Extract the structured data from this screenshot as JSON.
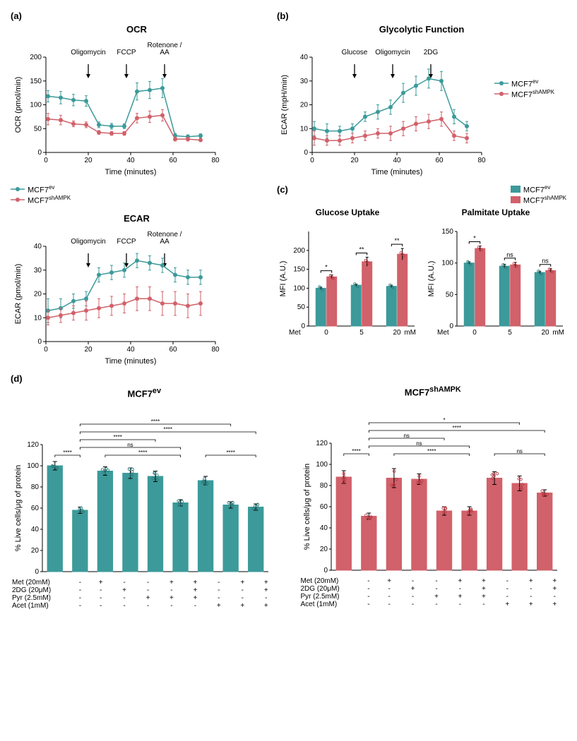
{
  "colors": {
    "ev": "#3c9a9a",
    "sh": "#d1616a",
    "axis": "#000000",
    "grid": "#ffffff",
    "dot_ev": "#2a7a7a",
    "dot_sh": "#b83a44"
  },
  "series_labels": {
    "ev_html": "MCF7<sup>ev</sup>",
    "sh_html": "MCF7<sup>shAMPK</sup>"
  },
  "panel_a": {
    "label": "(a)",
    "ocr": {
      "title": "OCR",
      "xlabel": "Time (minutes)",
      "ylabel": "OCR (pmol/min)",
      "xlim": [
        0,
        80
      ],
      "xticks": [
        0,
        20,
        40,
        60,
        80
      ],
      "ylim": [
        0,
        200
      ],
      "yticks": [
        0,
        50,
        100,
        150,
        200
      ],
      "annotations": [
        {
          "label": "Oligomycin",
          "x": 20
        },
        {
          "label": "FCCP",
          "x": 38
        },
        {
          "label": "Rotenone /\nAA",
          "x": 56
        }
      ],
      "ev": {
        "x": [
          1,
          7,
          13,
          19,
          25,
          31,
          37,
          43,
          49,
          55,
          61,
          67,
          73
        ],
        "y": [
          118,
          115,
          110,
          108,
          58,
          55,
          55,
          128,
          131,
          135,
          35,
          33,
          35
        ],
        "err": [
          12,
          13,
          12,
          11,
          6,
          6,
          5,
          18,
          18,
          20,
          5,
          4,
          4
        ]
      },
      "sh": {
        "x": [
          1,
          7,
          13,
          19,
          25,
          31,
          37,
          43,
          49,
          55,
          61,
          67,
          73
        ],
        "y": [
          70,
          68,
          60,
          58,
          42,
          40,
          40,
          72,
          75,
          78,
          28,
          28,
          26
        ],
        "err": [
          12,
          10,
          6,
          6,
          4,
          4,
          4,
          10,
          12,
          12,
          4,
          4,
          3
        ]
      }
    },
    "ecar": {
      "title": "ECAR",
      "xlabel": "Time (minutes)",
      "ylabel": "ECAR (pmol/min)",
      "xlim": [
        0,
        80
      ],
      "xticks": [
        0,
        20,
        40,
        60,
        80
      ],
      "ylim": [
        0,
        40
      ],
      "yticks": [
        0,
        10,
        20,
        30,
        40
      ],
      "annotations": [
        {
          "label": "Oligomycin",
          "x": 20
        },
        {
          "label": "FCCP",
          "x": 38
        },
        {
          "label": "Rotenone /\nAA",
          "x": 56
        }
      ],
      "ev": {
        "x": [
          1,
          7,
          13,
          19,
          25,
          31,
          37,
          43,
          49,
          55,
          61,
          67,
          73
        ],
        "y": [
          13,
          14,
          17,
          18,
          28,
          29,
          30,
          34,
          33,
          32,
          28,
          27,
          27
        ],
        "err": [
          5,
          4,
          3,
          3,
          3,
          3,
          3,
          3,
          3,
          3,
          3,
          3,
          3
        ]
      },
      "sh": {
        "x": [
          1,
          7,
          13,
          19,
          25,
          31,
          37,
          43,
          49,
          55,
          61,
          67,
          73
        ],
        "y": [
          10,
          11,
          12,
          13,
          14,
          15,
          16,
          18,
          18,
          16,
          16,
          15,
          16
        ],
        "err": [
          3,
          3,
          3,
          4,
          4,
          4,
          4,
          5,
          5,
          5,
          5,
          5,
          5
        ]
      }
    }
  },
  "panel_b": {
    "label": "(b)",
    "title": "Glycolytic Function",
    "xlabel": "Time (minutes)",
    "ylabel": "ECAR (mpH/min)",
    "xlim": [
      0,
      80
    ],
    "xticks": [
      0,
      20,
      40,
      60,
      80
    ],
    "ylim": [
      0,
      40
    ],
    "yticks": [
      0,
      10,
      20,
      30,
      40
    ],
    "annotations": [
      {
        "label": "Glucose",
        "x": 20
      },
      {
        "label": "Oligomycin",
        "x": 38
      },
      {
        "label": "2DG",
        "x": 56
      }
    ],
    "ev": {
      "x": [
        1,
        7,
        13,
        19,
        25,
        31,
        37,
        43,
        49,
        55,
        61,
        67,
        73
      ],
      "y": [
        10,
        9,
        9,
        10,
        15,
        17,
        19,
        25,
        28,
        31,
        30,
        15,
        11
      ],
      "err": [
        3,
        3,
        2,
        2,
        2,
        3,
        3,
        4,
        4,
        4,
        4,
        3,
        2
      ]
    },
    "sh": {
      "x": [
        1,
        7,
        13,
        19,
        25,
        31,
        37,
        43,
        49,
        55,
        61,
        67,
        73
      ],
      "y": [
        6,
        5,
        5,
        6,
        7,
        8,
        8,
        10,
        12,
        13,
        14,
        7,
        6
      ],
      "err": [
        3,
        2,
        2,
        2,
        2,
        2,
        3,
        3,
        3,
        3,
        3,
        2,
        2
      ]
    }
  },
  "panel_c": {
    "label": "(c)",
    "glucose": {
      "title": "Glucose Uptake",
      "ylabel": "MFI (A.U.)",
      "xlabel_prefix": "Met",
      "xlabel_suffix": "mM",
      "categories": [
        "0",
        "5",
        "20"
      ],
      "ylim": [
        0,
        250
      ],
      "yticks": [
        0,
        50,
        100,
        150,
        200
      ],
      "ev": {
        "vals": [
          100,
          108,
          105
        ],
        "err": [
          3,
          3,
          3
        ]
      },
      "sh": {
        "vals": [
          130,
          170,
          190
        ],
        "err": [
          5,
          12,
          15
        ]
      },
      "sig": [
        "*",
        "**",
        "**"
      ]
    },
    "palmitate": {
      "title": "Palmitate Uptake",
      "ylabel": "MFI (A.U.)",
      "xlabel_prefix": "Met",
      "xlabel_suffix": "mM",
      "categories": [
        "0",
        "5",
        "20"
      ],
      "ylim": [
        0,
        150
      ],
      "yticks": [
        0,
        50,
        100,
        150
      ],
      "ev": {
        "vals": [
          100,
          95,
          85
        ],
        "err": [
          2,
          3,
          2
        ]
      },
      "sh": {
        "vals": [
          123,
          97,
          88
        ],
        "err": [
          4,
          4,
          3
        ]
      },
      "sig": [
        "*",
        "ns",
        "ns"
      ]
    }
  },
  "panel_d": {
    "label": "(d)",
    "ylabel": "% Live cells/μg of protein",
    "ylim": [
      0,
      120
    ],
    "yticks": [
      0,
      20,
      40,
      60,
      80,
      100,
      120
    ],
    "treatments": [
      {
        "name": "Met (20mM)",
        "marks": [
          "-",
          "+",
          "-",
          "-",
          "+",
          "+",
          "-",
          "+",
          "+"
        ]
      },
      {
        "name": "2DG (20μM)",
        "marks": [
          "-",
          "-",
          "+",
          "-",
          "-",
          "+",
          "-",
          "-",
          "+"
        ]
      },
      {
        "name": "Pyr (2.5mM)",
        "marks": [
          "-",
          "-",
          "-",
          "+",
          "+",
          "+",
          "-",
          "-",
          "-"
        ]
      },
      {
        "name": "Acet (1mM)",
        "marks": [
          "-",
          "-",
          "-",
          "-",
          "-",
          "-",
          "+",
          "+",
          "+"
        ]
      }
    ],
    "ev": {
      "title_html": "MCF7<sup>ev</sup>",
      "vals": [
        100,
        58,
        95,
        93,
        90,
        65,
        86,
        63,
        61
      ],
      "err": [
        4,
        3,
        4,
        5,
        5,
        3,
        4,
        3,
        3
      ],
      "sig_brackets": [
        {
          "from": 0,
          "to": 1,
          "label": "****",
          "level": 0
        },
        {
          "from": 2,
          "to": 5,
          "label": "****",
          "level": 0
        },
        {
          "from": 6,
          "to": 8,
          "label": "****",
          "level": 0
        },
        {
          "from": 1,
          "to": 5,
          "label": "ns",
          "level": 1
        },
        {
          "from": 1,
          "to": 4,
          "label": "****",
          "level": 2
        },
        {
          "from": 1,
          "to": 8,
          "label": "****",
          "level": 3
        },
        {
          "from": 1,
          "to": 7,
          "label": "****",
          "level": 4
        }
      ]
    },
    "sh": {
      "title_html": "MCF7<sup>shAMPK</sup>",
      "vals": [
        88,
        51,
        87,
        86,
        56,
        56,
        87,
        82,
        73
      ],
      "err": [
        6,
        3,
        9,
        5,
        4,
        4,
        6,
        7,
        3
      ],
      "sig_brackets": [
        {
          "from": 0,
          "to": 1,
          "label": "****",
          "level": 0
        },
        {
          "from": 2,
          "to": 5,
          "label": "****",
          "level": 0
        },
        {
          "from": 6,
          "to": 8,
          "label": "ns",
          "level": 0
        },
        {
          "from": 1,
          "to": 5,
          "label": "ns",
          "level": 1
        },
        {
          "from": 1,
          "to": 4,
          "label": "ns",
          "level": 2
        },
        {
          "from": 1,
          "to": 8,
          "label": "****",
          "level": 3
        },
        {
          "from": 1,
          "to": 7,
          "label": "*",
          "level": 4
        }
      ]
    }
  }
}
